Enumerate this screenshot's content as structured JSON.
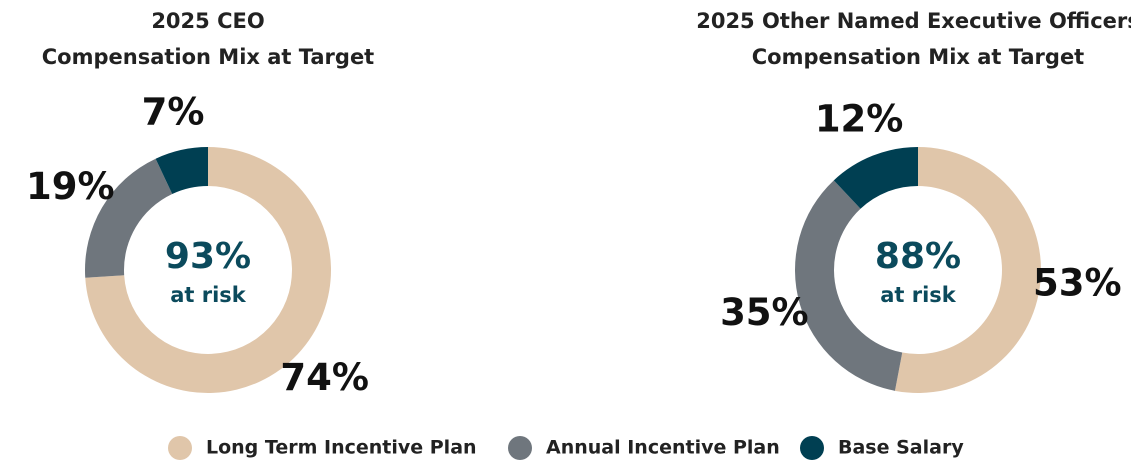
{
  "chart_data": [
    {
      "type": "donut",
      "title": [
        "2025 CEO",
        "Compensation Mix at Target"
      ],
      "categories": [
        "Long Term Incentive Plan",
        "Annual Incentive Plan",
        "Base Salary"
      ],
      "values": [
        74,
        19,
        7
      ],
      "value_labels": [
        "74%",
        "19%",
        "7%"
      ],
      "colors": [
        "#e0c6aa",
        "#6f767d",
        "#003f52"
      ],
      "center_label": "93%",
      "center_sublabel": "at risk"
    },
    {
      "type": "donut",
      "title": [
        "2025 Other Named Executive Officers",
        "Compensation Mix at Target"
      ],
      "categories": [
        "Long Term Incentive Plan",
        "Annual Incentive Plan",
        "Base Salary"
      ],
      "values": [
        53,
        35,
        12
      ],
      "value_labels": [
        "53%",
        "35%",
        "12%"
      ],
      "colors": [
        "#e0c6aa",
        "#6f767d",
        "#003f52"
      ],
      "center_label": "88%",
      "center_sublabel": "at risk"
    }
  ]
}
